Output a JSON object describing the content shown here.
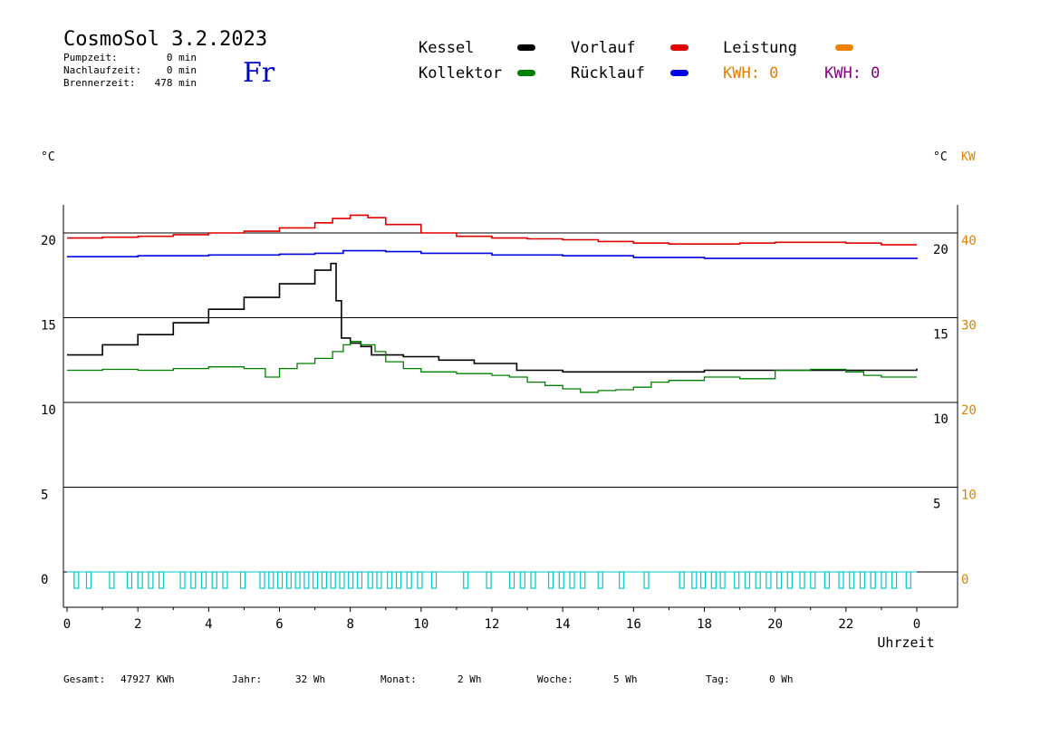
{
  "header": {
    "title": "CosmoSol 3.2.2023",
    "day": "Fr",
    "stats": [
      {
        "label": "Pumpzeit:",
        "value": "0 min"
      },
      {
        "label": "Nachlaufzeit:",
        "value": "0 min"
      },
      {
        "label": "Brennerzeit:",
        "value": "478 min"
      }
    ]
  },
  "legend": {
    "items": [
      {
        "label": "Kessel",
        "color": "#000000"
      },
      {
        "label": "Vorlauf",
        "color": "#e00000"
      },
      {
        "label": "Leistung",
        "color": "#f08000"
      },
      {
        "label": "Kollektor",
        "color": "#008000"
      },
      {
        "label": "Rücklauf",
        "color": "#0000e0"
      }
    ],
    "kwh_orange": "KWH: 0",
    "kwh_purple": "KWH: 0",
    "kwh_orange_color": "#e08000",
    "kwh_purple_color": "#800080"
  },
  "axes": {
    "left_unit": "°C",
    "right_unit_c": "°C",
    "right_unit_kw": "KW",
    "xlabel": "Uhrzeit"
  },
  "footer": [
    {
      "label": "Gesamt:",
      "value": "47927 KWh"
    },
    {
      "label": "Jahr:",
      "value": "32 Wh"
    },
    {
      "label": "Monat:",
      "value": "2 Wh"
    },
    {
      "label": "Woche:",
      "value": "5 Wh"
    },
    {
      "label": "Tag:",
      "value": "0 Wh"
    }
  ],
  "chart_data": {
    "type": "line",
    "xlim": [
      0,
      24
    ],
    "x_ticks": [
      "0",
      "2",
      "4",
      "6",
      "8",
      "10",
      "12",
      "14",
      "16",
      "18",
      "20",
      "22",
      "0"
    ],
    "y_left": {
      "range": [
        -2,
        22
      ],
      "ticks": [
        0,
        5,
        10,
        15,
        20
      ]
    },
    "y_right_c": {
      "ticks": [
        5,
        10,
        15,
        20
      ]
    },
    "y_right_kw": {
      "ticks": [
        0,
        10,
        20,
        30,
        40
      ]
    },
    "grid_lines_y": [
      0,
      5,
      10,
      15,
      20
    ],
    "series": [
      {
        "name": "Vorlauf",
        "color": "#e00000",
        "points": [
          [
            0,
            19.7
          ],
          [
            1,
            19.75
          ],
          [
            2,
            19.8
          ],
          [
            3,
            19.9
          ],
          [
            4,
            20.0
          ],
          [
            5,
            20.1
          ],
          [
            6,
            20.3
          ],
          [
            7,
            20.6
          ],
          [
            7.5,
            20.85
          ],
          [
            8,
            21.05
          ],
          [
            8.5,
            20.9
          ],
          [
            9,
            20.5
          ],
          [
            10,
            20.0
          ],
          [
            11,
            19.8
          ],
          [
            12,
            19.7
          ],
          [
            13,
            19.65
          ],
          [
            14,
            19.6
          ],
          [
            15,
            19.5
          ],
          [
            16,
            19.4
          ],
          [
            17,
            19.35
          ],
          [
            18,
            19.35
          ],
          [
            19,
            19.4
          ],
          [
            20,
            19.45
          ],
          [
            21,
            19.45
          ],
          [
            22,
            19.4
          ],
          [
            23,
            19.3
          ],
          [
            24,
            19.3
          ]
        ]
      },
      {
        "name": "Rücklauf",
        "color": "#0000e0",
        "points": [
          [
            0,
            18.6
          ],
          [
            2,
            18.65
          ],
          [
            4,
            18.7
          ],
          [
            6,
            18.75
          ],
          [
            7,
            18.8
          ],
          [
            7.8,
            18.95
          ],
          [
            9,
            18.9
          ],
          [
            10,
            18.8
          ],
          [
            12,
            18.7
          ],
          [
            14,
            18.65
          ],
          [
            16,
            18.55
          ],
          [
            18,
            18.5
          ],
          [
            20,
            18.5
          ],
          [
            22,
            18.5
          ],
          [
            24,
            18.45
          ]
        ]
      },
      {
        "name": "Kessel",
        "color": "#000000",
        "points": [
          [
            0,
            12.8
          ],
          [
            1,
            13.4
          ],
          [
            2,
            14.0
          ],
          [
            3,
            14.7
          ],
          [
            4,
            15.5
          ],
          [
            5,
            16.2
          ],
          [
            6,
            17.0
          ],
          [
            7,
            17.8
          ],
          [
            7.45,
            18.2
          ],
          [
            7.6,
            16.0
          ],
          [
            7.75,
            13.8
          ],
          [
            8,
            13.5
          ],
          [
            8.3,
            13.3
          ],
          [
            8.6,
            12.8
          ],
          [
            9.5,
            12.7
          ],
          [
            10.5,
            12.5
          ],
          [
            11.5,
            12.3
          ],
          [
            12.5,
            12.3
          ],
          [
            12.7,
            11.9
          ],
          [
            14,
            11.8
          ],
          [
            16,
            11.8
          ],
          [
            18,
            11.9
          ],
          [
            20,
            11.9
          ],
          [
            22,
            11.9
          ],
          [
            24,
            12.0
          ]
        ]
      },
      {
        "name": "Kollektor",
        "color": "#008000",
        "points": [
          [
            0,
            11.9
          ],
          [
            1,
            11.95
          ],
          [
            2,
            11.9
          ],
          [
            3,
            12.0
          ],
          [
            4,
            12.1
          ],
          [
            5,
            12.0
          ],
          [
            5.6,
            11.5
          ],
          [
            6,
            12.0
          ],
          [
            6.5,
            12.3
          ],
          [
            7,
            12.6
          ],
          [
            7.5,
            13.0
          ],
          [
            7.8,
            13.4
          ],
          [
            8,
            13.6
          ],
          [
            8.3,
            13.4
          ],
          [
            8.7,
            13.0
          ],
          [
            9,
            12.4
          ],
          [
            9.5,
            12.0
          ],
          [
            10,
            11.8
          ],
          [
            11,
            11.7
          ],
          [
            12,
            11.6
          ],
          [
            12.5,
            11.5
          ],
          [
            13,
            11.2
          ],
          [
            13.5,
            11.0
          ],
          [
            14,
            10.8
          ],
          [
            14.5,
            10.6
          ],
          [
            15,
            10.7
          ],
          [
            15.5,
            10.75
          ],
          [
            16,
            10.9
          ],
          [
            16.5,
            11.2
          ],
          [
            17,
            11.3
          ],
          [
            18,
            11.5
          ],
          [
            19,
            11.4
          ],
          [
            20,
            11.9
          ],
          [
            21,
            11.95
          ],
          [
            22,
            11.8
          ],
          [
            22.5,
            11.6
          ],
          [
            23,
            11.5
          ],
          [
            24,
            11.5
          ]
        ]
      }
    ],
    "pump_pulses": {
      "color": "#00c8c8",
      "x": [
        0.2,
        0.55,
        1.2,
        1.7,
        2.0,
        2.3,
        2.6,
        3.2,
        3.5,
        3.8,
        4.1,
        4.4,
        4.9,
        5.45,
        5.7,
        5.95,
        6.2,
        6.45,
        6.7,
        6.95,
        7.2,
        7.45,
        7.7,
        7.95,
        8.2,
        8.5,
        8.75,
        9.05,
        9.3,
        9.6,
        9.9,
        10.3,
        11.2,
        11.85,
        12.5,
        12.8,
        13.1,
        13.6,
        13.9,
        14.2,
        14.5,
        15.0,
        15.6,
        16.3,
        17.3,
        17.65,
        17.9,
        18.2,
        18.45,
        18.85,
        19.15,
        19.45,
        19.75,
        20.05,
        20.35,
        20.7,
        21.0,
        21.4,
        21.8,
        22.1,
        22.4,
        22.7,
        23.0,
        23.3,
        23.7
      ]
    }
  }
}
